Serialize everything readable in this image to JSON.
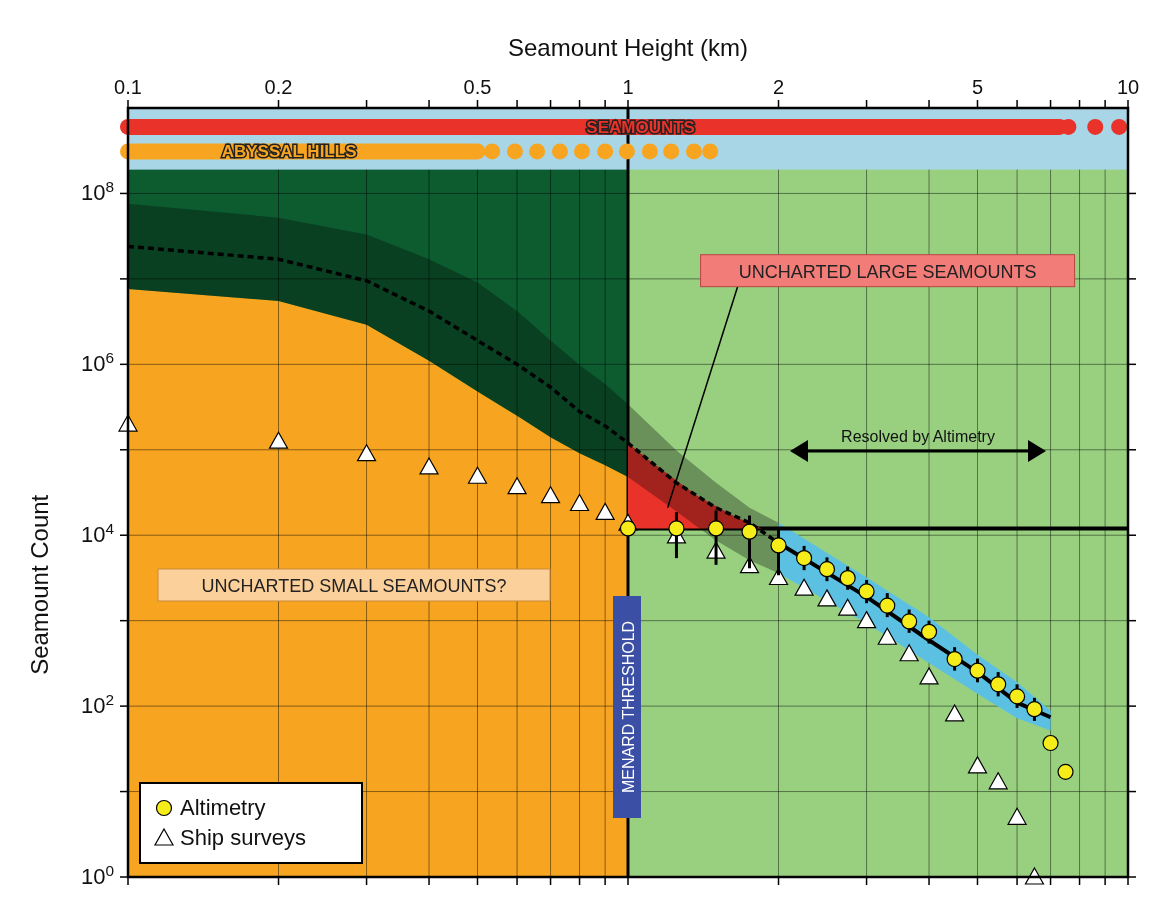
{
  "chart_data": {
    "type": "scatter",
    "xlabel": "Seamount Height (km)",
    "ylabel": "Seamount Count",
    "log": "xy",
    "grid": true,
    "legend": "bottom left",
    "xlim": [
      0.1,
      10
    ],
    "ylim": [
      1,
      1000000000
    ],
    "xticks": [
      0.1,
      0.2,
      {
        "value": 0.3,
        "label": null
      },
      {
        "value": 0.4,
        "label": null
      },
      0.5,
      {
        "value": 0.6,
        "label": null
      },
      {
        "value": 0.7,
        "label": null
      },
      {
        "value": 0.8,
        "label": null
      },
      {
        "value": 0.9,
        "label": null
      },
      1,
      2,
      {
        "value": 3,
        "label": null
      },
      {
        "value": 4,
        "label": null
      },
      5,
      {
        "value": 6,
        "label": null
      },
      {
        "value": 7,
        "label": null
      },
      {
        "value": 8,
        "label": null
      },
      {
        "value": 9,
        "label": null
      },
      10
    ],
    "yticks": [
      {
        "value": 1,
        "label": "10$^{0}$"
      },
      {
        "value": 10,
        "label": null
      },
      {
        "value": 100,
        "label": "10$^{2}$"
      },
      {
        "value": 1000,
        "label": null
      },
      {
        "value": 10000,
        "label": "10$^{4}$"
      },
      {
        "value": 100000,
        "label": null
      },
      {
        "value": 1000000,
        "label": "10$^{6}$"
      },
      {
        "value": 10000000,
        "label": null
      },
      {
        "value": 100000000,
        "label": "10$^{8}$"
      }
    ],
    "bands": [
      {
        "axis": "x",
        "from": 0.1,
        "to": 1,
        "color": "#0c5c30"
      },
      {
        "axis": "x",
        "from": 1,
        "to": 10,
        "color": "#98d080"
      },
      {
        "axis": "y",
        "from": 190000000,
        "to": 1000000000,
        "color": "#a9d6e6"
      }
    ],
    "ref_lines": [
      {
        "axis": "x",
        "value": 1,
        "label": "MENARD THRESHOLD",
        "color": "#000000"
      }
    ],
    "annotations": [
      {
        "text": "UNCHARTED LARGE SEAMOUNTS",
        "x": 1.2,
        "y": 21000
      },
      "Resolved by Altimetry",
      "UNCHARTED SMALL SEAMOUNTS?"
    ],
    "series": [
      {
        "type": "area",
        "color": "#f7a521",
        "x": [
          0.1,
          0.2,
          0.3,
          0.4,
          0.5,
          0.6,
          0.7,
          0.8,
          0.9,
          1
        ],
        "values": [
          7600000,
          5500000,
          2900000,
          1100000,
          480000,
          250000,
          140000,
          91000,
          66000,
          48000
        ]
      },
      {
        "type": "line",
        "color": "#5cc0e3",
        "x": [
          2,
          3,
          4,
          5,
          6,
          7
        ],
        "values": [
          null,
          null,
          null,
          null,
          null,
          null
        ],
        "lower": [
          3600,
          930,
          320,
          140,
          72,
          52
        ],
        "upper": [
          14000,
          3200,
          1100,
          400,
          190,
          89
        ]
      },
      {
        "type": "line",
        "color": "#000000",
        "x": [
          1.04,
          10
        ],
        "values": [
          12000,
          12000
        ]
      },
      {
        "type": "line",
        "color": "#e8322a",
        "x": [
          1,
          1.1,
          1.375,
          1.62,
          1.85
        ],
        "values": [
          null,
          null,
          null,
          null,
          null
        ],
        "lower": [
          12000,
          12000,
          12000,
          12000,
          12000
        ],
        "upper": [
          120000,
          76000,
          29000,
          17000,
          12000
        ]
      },
      {
        "type": "line",
        "line_style": "dashed",
        "color": "#000000",
        "x": [
          0.1,
          0.2,
          0.3,
          0.4,
          0.5,
          0.6,
          0.7,
          0.8,
          0.9,
          1,
          1.25,
          1.5,
          1.75,
          2
        ],
        "values": [
          24000000,
          17000000,
          9500000,
          4200000,
          1900000,
          1000000,
          540000,
          280000,
          190000,
          120000,
          41000,
          21000,
          14000,
          8100
        ],
        "lower": [
          7600000,
          5500000,
          2900000,
          1100000,
          480000,
          250000,
          140000,
          91000,
          66000,
          48000,
          19000,
          8700,
          5100,
          3600
        ],
        "upper": [
          76000000,
          52000000,
          33000000,
          17000000,
          9100000,
          4200000,
          1900000,
          980000,
          590000,
          340000,
          98000,
          41000,
          21000,
          14000
        ]
      },
      {
        "type": "line",
        "color": "#000000",
        "x": [
          2,
          3,
          4,
          5,
          6,
          7
        ],
        "values": [
          8100,
          1900,
          590,
          250,
          110,
          74
        ]
      },
      {
        "type": "line",
        "name": "SEAMOUNTS",
        "color": "#e8322a",
        "x": [
          0.1,
          1.06,
          7.3
        ],
        "values": [
          600000000,
          600000000,
          600000000
        ]
      },
      {
        "type": "scatter",
        "marker": "circle",
        "color": "#e8322a",
        "x": [
          7.6,
          8.6,
          9.6
        ],
        "values": [
          600000000,
          600000000,
          600000000
        ]
      },
      {
        "type": "line",
        "name": "ABYSSAL HILLS",
        "color": "#f7a521",
        "x": [
          0.1,
          0.21,
          0.5
        ],
        "values": [
          310000000,
          310000000,
          310000000
        ]
      },
      {
        "type": "scatter",
        "marker": "circle",
        "color": "#f7a521",
        "x": [
          0.535,
          0.594,
          0.658,
          0.731,
          0.809,
          0.9,
          0.995,
          1.106,
          1.22,
          1.355,
          1.46
        ],
        "values": [
          310000000,
          310000000,
          310000000,
          310000000,
          310000000,
          310000000,
          310000000,
          310000000,
          310000000,
          310000000,
          310000000
        ]
      },
      {
        "type": "scatter",
        "name": "Ship surveys",
        "marker": "triangle",
        "color": "#ffffff",
        "x": [
          0.1,
          0.2,
          0.3,
          0.4,
          0.5,
          0.6,
          0.7,
          0.8,
          0.9,
          1,
          1.25,
          1.5,
          1.75,
          2,
          2.25,
          2.5,
          2.75,
          3,
          3.3,
          3.65,
          4,
          4.5,
          5,
          5.5,
          6,
          6.5
        ],
        "values": [
          200000,
          126000,
          90000,
          63000,
          49000,
          37000,
          29000,
          23500,
          18500,
          13800,
          9800,
          6500,
          4400,
          3200,
          2400,
          1800,
          1400,
          1000,
          640,
          410,
          220,
          81,
          20,
          13,
          5,
          1
        ]
      },
      {
        "type": "scatter",
        "name": "Altimetry",
        "marker": "circle",
        "color": "#f5ec1a",
        "x": [
          1,
          1.25,
          1.5,
          1.75,
          2,
          2.25,
          2.5,
          2.75,
          3,
          3.3,
          3.65,
          4,
          4.5,
          5,
          5.5,
          6,
          6.5,
          7,
          7.5
        ],
        "values": [
          12000,
          12000,
          12000,
          11000,
          7600,
          5400,
          4000,
          3150,
          2200,
          1500,
          980,
          740,
          355,
          260,
          180,
          130,
          92,
          37,
          17
        ],
        "errors": [
          null,
          [
            5400,
            18600
          ],
          [
            4500,
            19500
          ],
          [
            4100,
            17000
          ],
          [
            3400,
            11500
          ],
          [
            3900,
            7500
          ],
          [
            2900,
            5500
          ],
          [
            2300,
            4300
          ],
          [
            1600,
            3000
          ],
          [
            1100,
            2100
          ],
          [
            720,
            1350
          ],
          [
            540,
            1000
          ],
          [
            260,
            490
          ],
          [
            190,
            360
          ],
          [
            130,
            250
          ],
          [
            95,
            180
          ],
          [
            67,
            125
          ],
          null,
          null
        ]
      }
    ]
  }
}
